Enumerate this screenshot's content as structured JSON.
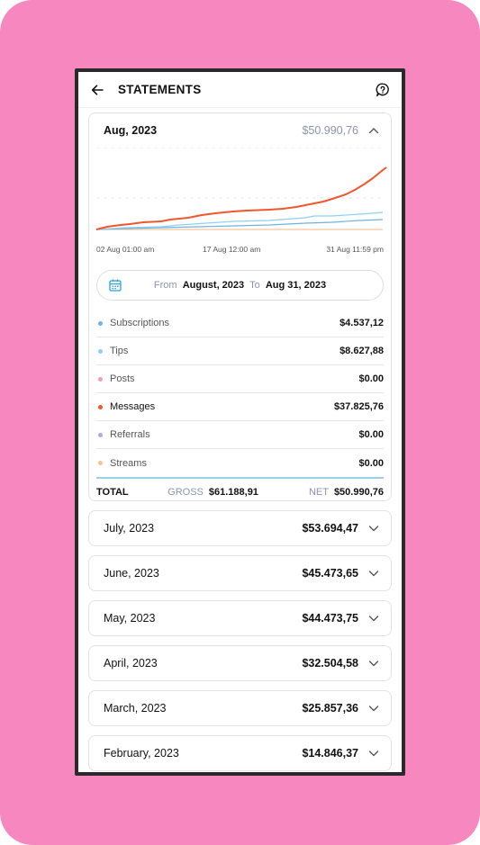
{
  "header": {
    "title": "STATEMENTS"
  },
  "current": {
    "month": "Aug, 2023",
    "amount": "$50.990,76",
    "ticks": [
      "02 Aug 01:00 am",
      "17 Aug 12:00 am",
      "31 Aug 11:59 pm"
    ],
    "range": {
      "from_label": "From",
      "from_value": "August, 2023",
      "to_label": "To",
      "to_value": "Aug 31, 2023"
    },
    "rows": [
      {
        "name": "Subscriptions",
        "value": "$4.537,12",
        "color": "#6fb3e0"
      },
      {
        "name": "Tips",
        "value": "$8.627,88",
        "color": "#8fd0f0"
      },
      {
        "name": "Posts",
        "value": "$0.00",
        "color": "#f29bc0"
      },
      {
        "name": "Messages",
        "value": "$37.825,76",
        "color": "#f0572a"
      },
      {
        "name": "Referrals",
        "value": "$0.00",
        "color": "#b6a6e0"
      },
      {
        "name": "Streams",
        "value": "$0.00",
        "color": "#f6c49c"
      }
    ],
    "total": {
      "label": "TOTAL",
      "gross_label": "GROSS",
      "gross": "$61.188,91",
      "net_label": "NET",
      "net": "$50.990,76"
    }
  },
  "months": [
    {
      "month": "July, 2023",
      "amount": "$53.694,47"
    },
    {
      "month": "June, 2023",
      "amount": "$45.473,65"
    },
    {
      "month": "May, 2023",
      "amount": "$44.473,75"
    },
    {
      "month": "April, 2023",
      "amount": "$32.504,58"
    },
    {
      "month": "March, 2023",
      "amount": "$25.857,36"
    },
    {
      "month": "February, 2023",
      "amount": "$14.846,37"
    }
  ],
  "colors": {
    "background": "#f687bf",
    "accent": "#f0572a",
    "cal_icon": "#2aa3d9"
  }
}
